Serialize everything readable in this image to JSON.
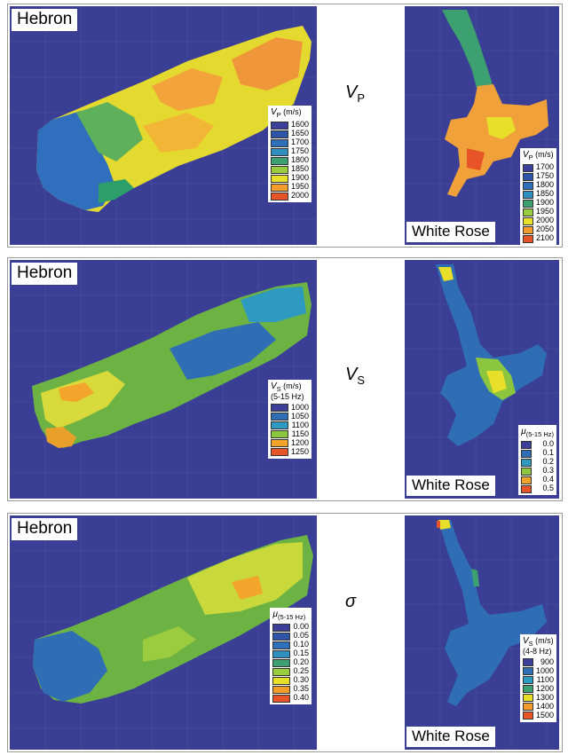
{
  "rows": [
    {
      "symbol_main": "V",
      "symbol_sub": "P",
      "hebron": {
        "label": "Hebron",
        "legend_title_var": "V",
        "legend_title_sub": "P",
        "legend_title_unit": " (m/s)",
        "legend_title_line2": "",
        "legend_values": [
          "1600",
          "1650",
          "1700",
          "1750",
          "1800",
          "1850",
          "1900",
          "1950",
          "2000"
        ],
        "legend_colors": [
          "#3b3f9a",
          "#2f55a8",
          "#2e6fb9",
          "#2f8fbf",
          "#3da071",
          "#9bcb3f",
          "#e8df2a",
          "#f39c2b",
          "#e65427"
        ]
      },
      "white_rose": {
        "label": "White Rose",
        "legend_title_var": "V",
        "legend_title_sub": "P",
        "legend_title_unit": " (m/s)",
        "legend_title_line2": "",
        "legend_values": [
          "1700",
          "1750",
          "1800",
          "1850",
          "1900",
          "1950",
          "2000",
          "2050",
          "2100"
        ],
        "legend_colors": [
          "#3b3f9a",
          "#2f55a8",
          "#2e6fb9",
          "#2f8fbf",
          "#3da071",
          "#9bcb3f",
          "#e8df2a",
          "#f39c2b",
          "#e65427"
        ]
      }
    },
    {
      "symbol_main": "V",
      "symbol_sub": "S",
      "hebron": {
        "label": "Hebron",
        "legend_title_var": "V",
        "legend_title_sub": "S",
        "legend_title_unit": " (m/s)",
        "legend_title_line2": "(5-15 Hz)",
        "legend_values": [
          "1000",
          "1050",
          "1100",
          "1150",
          "1200",
          "1250"
        ],
        "legend_colors": [
          "#3b3f9a",
          "#2f6db5",
          "#2f9abf",
          "#8cc63f",
          "#f2a52a",
          "#e65427"
        ]
      },
      "white_rose": {
        "label": "White Rose",
        "legend_title_var": "μ",
        "legend_title_sub": "(5-15 Hz)",
        "legend_title_unit": "",
        "legend_title_line2": "",
        "legend_values": [
          "0.0",
          "0.1",
          "0.2",
          "0.3",
          "0.4",
          "0.5"
        ],
        "legend_colors": [
          "#3b3f9a",
          "#2f6db5",
          "#2f9abf",
          "#8cc63f",
          "#f2a52a",
          "#e65427"
        ]
      }
    },
    {
      "symbol_main": "σ",
      "symbol_sub": "",
      "hebron": {
        "label": "Hebron",
        "legend_title_var": "μ",
        "legend_title_sub": "(5-15 Hz)",
        "legend_title_unit": "",
        "legend_title_line2": "",
        "legend_values": [
          "0.00",
          "0.05",
          "0.10",
          "0.15",
          "0.20",
          "0.25",
          "0.30",
          "0.35",
          "0.40"
        ],
        "legend_colors": [
          "#3b3f9a",
          "#2f55a8",
          "#2e6fb9",
          "#2f8fbf",
          "#3da071",
          "#9bcb3f",
          "#e8df2a",
          "#f39c2b",
          "#e65427"
        ]
      },
      "white_rose": {
        "label": "White Rose",
        "legend_title_var": "V",
        "legend_title_sub": "S",
        "legend_title_unit": " (m/s)",
        "legend_title_line2": "(4-8 Hz)",
        "legend_values": [
          "900",
          "1000",
          "1100",
          "1200",
          "1300",
          "1400",
          "1500"
        ],
        "legend_colors": [
          "#3b3f9a",
          "#2f6db5",
          "#2f9abf",
          "#3da071",
          "#e8df2a",
          "#f39c2b",
          "#e65427"
        ]
      }
    }
  ]
}
